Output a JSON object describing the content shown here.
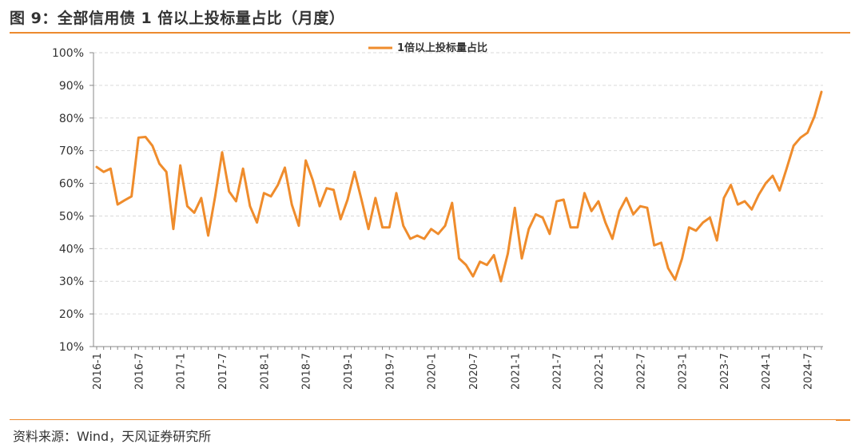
{
  "header": {
    "title": "图 9：全部信用债 1 倍以上投标量占比（月度）"
  },
  "footer": {
    "source": "资料来源：Wind，天风证券研究所"
  },
  "colors": {
    "line": "#ef8c2c",
    "rule": "#ec8a2e",
    "grid": "#d9d9d9",
    "axis": "#888888"
  },
  "chart_data": {
    "type": "line",
    "title": "",
    "xlabel": "",
    "ylabel": "",
    "legend_position": "top-center",
    "grid": true,
    "ylim": [
      10,
      100
    ],
    "y_ticks": [
      "10%",
      "20%",
      "30%",
      "40%",
      "50%",
      "60%",
      "70%",
      "80%",
      "90%",
      "100%"
    ],
    "x_tick_labels": [
      "2016-1",
      "2016-7",
      "2017-1",
      "2017-7",
      "2018-1",
      "2018-7",
      "2019-1",
      "2019-7",
      "2020-1",
      "2020-7",
      "2021-1",
      "2021-7",
      "2022-1",
      "2022-7",
      "2023-1",
      "2023-7",
      "2024-1",
      "2024-7"
    ],
    "x_start": "2016-1",
    "series": [
      {
        "name": "1倍以上投标量占比",
        "values": [
          65,
          63.5,
          64.5,
          53.5,
          54.8,
          56,
          74,
          74.2,
          71.5,
          66,
          63.5,
          46,
          65.5,
          53,
          51,
          55.5,
          44,
          56,
          69.5,
          57.5,
          54.5,
          64.5,
          53,
          48,
          57,
          56,
          59.5,
          64.8,
          53.5,
          47,
          67,
          61,
          53,
          58.5,
          58,
          49,
          55,
          63.5,
          55,
          46,
          55.5,
          46.5,
          46.5,
          57,
          47,
          43,
          44,
          43,
          46,
          44.5,
          47,
          54,
          37,
          35,
          31.5,
          36,
          35,
          38,
          30,
          38.5,
          52.5,
          37,
          46,
          50.5,
          49.5,
          44.5,
          54.5,
          55,
          46.5,
          46.5,
          57,
          51.5,
          54.5,
          48,
          43,
          51.5,
          55.5,
          50.5,
          53,
          52.5,
          41,
          41.8,
          34,
          30.5,
          37,
          46.5,
          45.5,
          48,
          49.5,
          42.5,
          55.5,
          59.5,
          53.5,
          54.5,
          52,
          56.5,
          60,
          62.3,
          57.8,
          64.5,
          71.5,
          74,
          75.5,
          80.5,
          88
        ]
      }
    ]
  }
}
